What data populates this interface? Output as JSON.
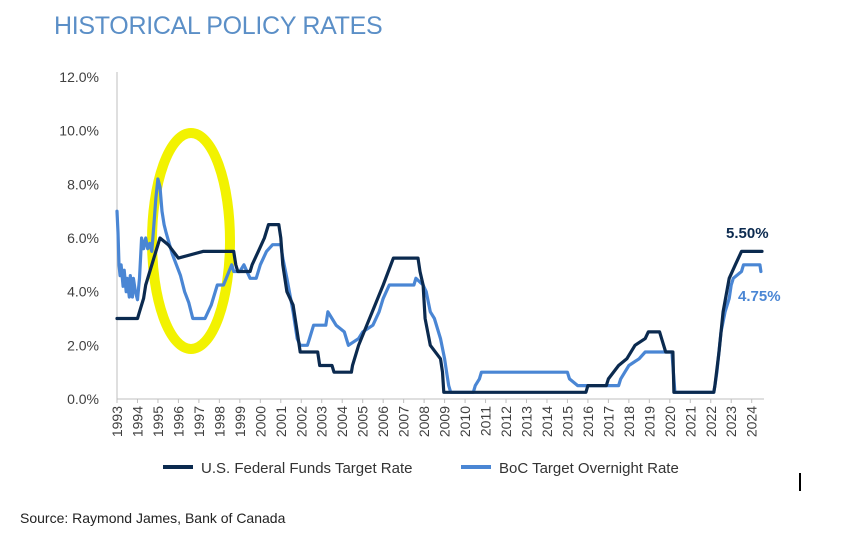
{
  "chart_data": {
    "type": "line",
    "title": "HISTORICAL POLICY RATES",
    "xlabel": "",
    "ylabel": "",
    "x_range": [
      1993,
      2024.6
    ],
    "ylim": [
      0,
      12
    ],
    "y_ticks": [
      "0.0%",
      "2.0%",
      "4.0%",
      "6.0%",
      "8.0%",
      "10.0%",
      "12.0%"
    ],
    "y_tick_values": [
      0,
      2,
      4,
      6,
      8,
      10,
      12
    ],
    "x_ticks": [
      "1993",
      "1994",
      "1995",
      "1996",
      "1997",
      "1998",
      "1999",
      "2000",
      "2001",
      "2002",
      "2003",
      "2004",
      "2005",
      "2006",
      "2007",
      "2008",
      "2009",
      "2010",
      "2011",
      "2012",
      "2013",
      "2014",
      "2015",
      "2016",
      "2017",
      "2018",
      "2019",
      "2020",
      "2021",
      "2022",
      "2023",
      "2024"
    ],
    "x_tick_values": [
      1993,
      1994,
      1995,
      1996,
      1997,
      1998,
      1999,
      2000,
      2001,
      2002,
      2003,
      2004,
      2005,
      2006,
      2007,
      2008,
      2009,
      2010,
      2011,
      2012,
      2013,
      2014,
      2015,
      2016,
      2017,
      2018,
      2019,
      2020,
      2021,
      2022,
      2023,
      2024
    ],
    "grid": false,
    "legend_position": "bottom",
    "series": [
      {
        "name": "U.S. Federal Funds Target Rate",
        "color": "#0b2a4f",
        "end_label": "5.50%",
        "points": [
          [
            1993,
            3.0
          ],
          [
            1994.0,
            3.0
          ],
          [
            1994.1,
            3.25
          ],
          [
            1994.3,
            3.75
          ],
          [
            1994.4,
            4.25
          ],
          [
            1994.6,
            4.75
          ],
          [
            1994.9,
            5.5
          ],
          [
            1995.1,
            6.0
          ],
          [
            1995.5,
            5.75
          ],
          [
            1996.0,
            5.25
          ],
          [
            1997.2,
            5.5
          ],
          [
            1998.7,
            5.5
          ],
          [
            1998.8,
            5.0
          ],
          [
            1998.9,
            4.75
          ],
          [
            1999.5,
            4.75
          ],
          [
            1999.6,
            5.0
          ],
          [
            1999.9,
            5.5
          ],
          [
            2000.2,
            6.0
          ],
          [
            2000.4,
            6.5
          ],
          [
            2000.9,
            6.5
          ],
          [
            2001.0,
            6.0
          ],
          [
            2001.1,
            5.0
          ],
          [
            2001.3,
            4.0
          ],
          [
            2001.6,
            3.5
          ],
          [
            2001.8,
            2.5
          ],
          [
            2001.95,
            1.75
          ],
          [
            2002.8,
            1.75
          ],
          [
            2002.9,
            1.25
          ],
          [
            2003.5,
            1.25
          ],
          [
            2003.6,
            1.0
          ],
          [
            2004.45,
            1.0
          ],
          [
            2004.5,
            1.25
          ],
          [
            2004.8,
            2.0
          ],
          [
            2005.2,
            2.75
          ],
          [
            2005.6,
            3.5
          ],
          [
            2006.0,
            4.25
          ],
          [
            2006.5,
            5.25
          ],
          [
            2007.7,
            5.25
          ],
          [
            2007.8,
            4.75
          ],
          [
            2007.95,
            4.25
          ],
          [
            2008.05,
            3.0
          ],
          [
            2008.3,
            2.0
          ],
          [
            2008.8,
            1.5
          ],
          [
            2008.9,
            1.0
          ],
          [
            2008.96,
            0.25
          ],
          [
            2015.9,
            0.25
          ],
          [
            2016.0,
            0.5
          ],
          [
            2016.9,
            0.5
          ],
          [
            2017.0,
            0.75
          ],
          [
            2017.5,
            1.25
          ],
          [
            2017.9,
            1.5
          ],
          [
            2018.3,
            2.0
          ],
          [
            2018.8,
            2.25
          ],
          [
            2018.95,
            2.5
          ],
          [
            2019.5,
            2.5
          ],
          [
            2019.6,
            2.25
          ],
          [
            2019.8,
            1.75
          ],
          [
            2020.15,
            1.75
          ],
          [
            2020.2,
            0.25
          ],
          [
            2022.15,
            0.25
          ],
          [
            2022.2,
            0.5
          ],
          [
            2022.4,
            1.75
          ],
          [
            2022.6,
            3.25
          ],
          [
            2022.9,
            4.5
          ],
          [
            2023.2,
            5.0
          ],
          [
            2023.5,
            5.5
          ],
          [
            2024.5,
            5.5
          ]
        ]
      },
      {
        "name": "BoC Target Overnight Rate",
        "color": "#4a86d4",
        "end_label": "4.75%",
        "points": [
          [
            1993,
            7.0
          ],
          [
            1993.05,
            6.2
          ],
          [
            1993.1,
            5.0
          ],
          [
            1993.15,
            4.6
          ],
          [
            1993.2,
            5.0
          ],
          [
            1993.3,
            4.2
          ],
          [
            1993.35,
            4.8
          ],
          [
            1993.45,
            4.0
          ],
          [
            1993.5,
            4.5
          ],
          [
            1993.6,
            3.8
          ],
          [
            1993.65,
            4.6
          ],
          [
            1993.75,
            3.8
          ],
          [
            1993.8,
            4.5
          ],
          [
            1993.9,
            4.0
          ],
          [
            1994.0,
            3.7
          ],
          [
            1994.1,
            4.5
          ],
          [
            1994.2,
            6.0
          ],
          [
            1994.3,
            5.6
          ],
          [
            1994.4,
            6.0
          ],
          [
            1994.5,
            5.6
          ],
          [
            1994.6,
            5.8
          ],
          [
            1994.7,
            5.5
          ],
          [
            1994.8,
            6.5
          ],
          [
            1994.9,
            7.5
          ],
          [
            1995.0,
            8.2
          ],
          [
            1995.1,
            7.9
          ],
          [
            1995.2,
            7.0
          ],
          [
            1995.3,
            6.5
          ],
          [
            1995.4,
            6.2
          ],
          [
            1995.55,
            5.8
          ],
          [
            1995.7,
            5.4
          ],
          [
            1995.9,
            5.0
          ],
          [
            1996.1,
            4.6
          ],
          [
            1996.3,
            4.0
          ],
          [
            1996.5,
            3.6
          ],
          [
            1996.7,
            3.0
          ],
          [
            1997.3,
            3.0
          ],
          [
            1997.6,
            3.5
          ],
          [
            1997.9,
            4.25
          ],
          [
            1998.2,
            4.25
          ],
          [
            1998.6,
            5.0
          ],
          [
            1998.7,
            4.75
          ],
          [
            1999.0,
            4.75
          ],
          [
            1999.2,
            5.0
          ],
          [
            1999.5,
            4.5
          ],
          [
            1999.8,
            4.5
          ],
          [
            2000.0,
            5.0
          ],
          [
            2000.3,
            5.5
          ],
          [
            2000.6,
            5.75
          ],
          [
            2001.0,
            5.75
          ],
          [
            2001.1,
            5.25
          ],
          [
            2001.3,
            4.5
          ],
          [
            2001.6,
            3.25
          ],
          [
            2001.8,
            2.25
          ],
          [
            2001.95,
            2.0
          ],
          [
            2002.3,
            2.0
          ],
          [
            2002.4,
            2.25
          ],
          [
            2002.6,
            2.75
          ],
          [
            2003.2,
            2.75
          ],
          [
            2003.3,
            3.25
          ],
          [
            2003.5,
            3.0
          ],
          [
            2003.7,
            2.75
          ],
          [
            2004.1,
            2.5
          ],
          [
            2004.3,
            2.0
          ],
          [
            2004.8,
            2.25
          ],
          [
            2005.0,
            2.5
          ],
          [
            2005.5,
            2.75
          ],
          [
            2005.8,
            3.25
          ],
          [
            2006.0,
            3.75
          ],
          [
            2006.3,
            4.25
          ],
          [
            2007.5,
            4.25
          ],
          [
            2007.6,
            4.5
          ],
          [
            2007.95,
            4.25
          ],
          [
            2008.1,
            4.0
          ],
          [
            2008.3,
            3.25
          ],
          [
            2008.5,
            3.0
          ],
          [
            2008.8,
            2.25
          ],
          [
            2009.0,
            1.5
          ],
          [
            2009.1,
            1.0
          ],
          [
            2009.2,
            0.5
          ],
          [
            2009.3,
            0.25
          ],
          [
            2010.4,
            0.25
          ],
          [
            2010.5,
            0.5
          ],
          [
            2010.7,
            0.75
          ],
          [
            2010.8,
            1.0
          ],
          [
            2015.0,
            1.0
          ],
          [
            2015.1,
            0.75
          ],
          [
            2015.5,
            0.5
          ],
          [
            2017.5,
            0.5
          ],
          [
            2017.6,
            0.75
          ],
          [
            2017.8,
            1.0
          ],
          [
            2018.0,
            1.25
          ],
          [
            2018.5,
            1.5
          ],
          [
            2018.8,
            1.75
          ],
          [
            2020.1,
            1.75
          ],
          [
            2020.2,
            0.75
          ],
          [
            2020.25,
            0.25
          ],
          [
            2022.15,
            0.25
          ],
          [
            2022.2,
            0.5
          ],
          [
            2022.3,
            1.0
          ],
          [
            2022.5,
            2.5
          ],
          [
            2022.7,
            3.25
          ],
          [
            2022.9,
            3.75
          ],
          [
            2023.0,
            4.25
          ],
          [
            2023.1,
            4.5
          ],
          [
            2023.5,
            4.75
          ],
          [
            2023.6,
            5.0
          ],
          [
            2024.4,
            5.0
          ],
          [
            2024.45,
            4.75
          ]
        ]
      }
    ]
  },
  "source_note": "Source: Raymond James, Bank of Canada",
  "highlight_color": "#f2f200"
}
